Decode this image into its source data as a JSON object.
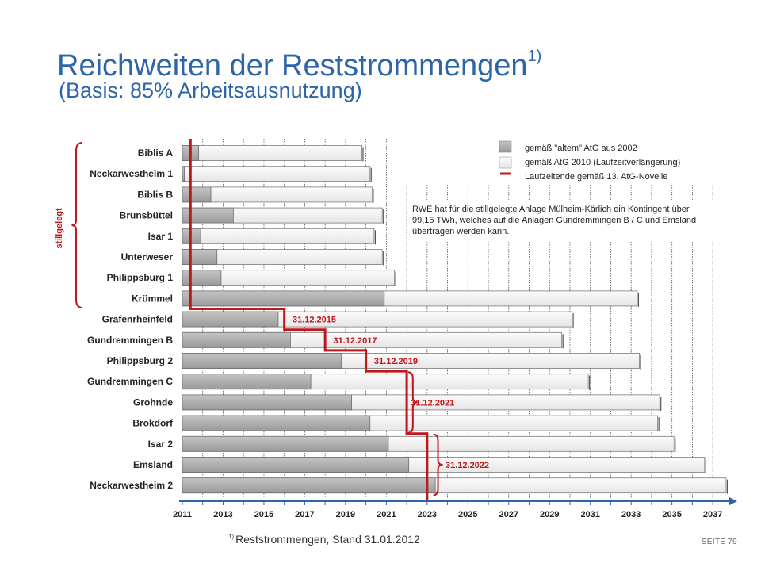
{
  "title": "Reichweiten der Reststrommengen",
  "title_superscript": "1)",
  "subtitle": "(Basis: 85% Arbeitsausnutzung)",
  "legend": {
    "old_law": "gemäß \"altem\" AtG aus 2002",
    "new_law": "gemäß AtG 2010 (Laufzeitverlängerung)",
    "end_date": "Laufzeitende gemäß 13. AtG-Novelle"
  },
  "note": "RWE hat für die stillgelegte Anlage Mülheim-Kärlich ein Kontingent über 99,15 TWh, welches auf die Anlagen Gundremmingen B / C und Emsland übertragen werden kann.",
  "bracket_label": "stillgelegt",
  "footnote_mark": "1)",
  "footnote": "Reststrommengen, Stand 31.01.2012",
  "page_label": "SEITE 79",
  "colors": {
    "title": "#2e65a8",
    "old_bar": "#a6a6a6",
    "new_bar": "#f2f2f2",
    "end_line": "#c0161e",
    "axis": "#2e65a8"
  },
  "chart_data": {
    "type": "bar",
    "orientation": "horizontal",
    "x_start": 2011,
    "xlim": [
      2011,
      2037.5
    ],
    "xticks": [
      "2011",
      "2013",
      "2015",
      "2017",
      "2019",
      "2021",
      "2023",
      "2025",
      "2027",
      "2029",
      "2031",
      "2033",
      "2035",
      "2037"
    ],
    "categories": [
      "Biblis A",
      "Neckarwestheim  1",
      "Biblis B",
      "Brunsbüttel",
      "Isar 1",
      "Unterweser",
      "Philippsburg 1",
      "Krümmel",
      "Grafenrheinfeld",
      "Gundremmingen B",
      "Philippsburg 2",
      "Gundremmingen C",
      "Grohnde",
      "Brokdorf",
      "Isar 2",
      "Emsland",
      "Neckarwestheim  2"
    ],
    "series": [
      {
        "name": "gemäß \"altem\" AtG aus 2002",
        "values": [
          2011.8,
          2011.1,
          2012.4,
          2013.5,
          2011.9,
          2012.7,
          2012.9,
          2020.9,
          2015.7,
          2016.3,
          2018.8,
          2017.3,
          2019.3,
          2020.2,
          2021.1,
          2022.1,
          2023.4
        ]
      },
      {
        "name": "gemäß AtG 2010 (Laufzeitverlängerung)",
        "values": [
          2019.8,
          2020.2,
          2020.3,
          2020.8,
          2020.4,
          2020.8,
          2021.4,
          2033.3,
          2030.1,
          2029.6,
          2033.4,
          2030.9,
          2034.4,
          2034.3,
          2035.1,
          2036.6,
          2038.0
        ]
      }
    ],
    "shutdown_labels": [
      "31.12.2015",
      "31.12.2017",
      "31.12.2019",
      "31.12.2021",
      "31.12.2022"
    ],
    "shutdown_steps": [
      {
        "year": 2011.4,
        "from_row": 0,
        "to_row": 7
      },
      {
        "year": 2016.0,
        "from_row": 8,
        "to_row": 8
      },
      {
        "year": 2018.0,
        "from_row": 9,
        "to_row": 9
      },
      {
        "year": 2020.0,
        "from_row": 10,
        "to_row": 10
      },
      {
        "year": 2022.0,
        "from_row": 11,
        "to_row": 13
      },
      {
        "year": 2023.0,
        "from_row": 14,
        "to_row": 16
      }
    ]
  }
}
